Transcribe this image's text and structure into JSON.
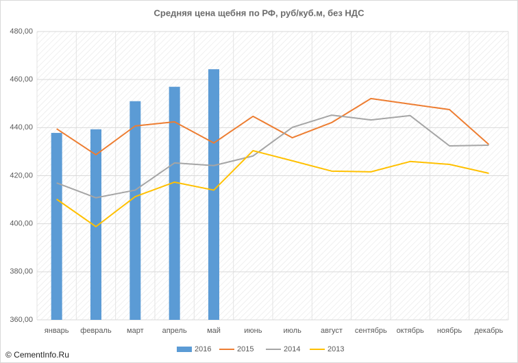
{
  "chart_data": {
    "type": "combo",
    "title": "Средняя цена щебня по РФ, руб/куб.м, без НДС",
    "watermark": "© CementInfo.Ru",
    "categories": [
      "январь",
      "февраль",
      "март",
      "апрель",
      "май",
      "июнь",
      "июль",
      "август",
      "сентябрь",
      "октябрь",
      "ноябрь",
      "декабрь"
    ],
    "ylim": [
      360,
      480
    ],
    "yticks": [
      {
        "value": 360,
        "label": "360,00"
      },
      {
        "value": 380,
        "label": "380,00"
      },
      {
        "value": 400,
        "label": "400,00"
      },
      {
        "value": 420,
        "label": "420,00"
      },
      {
        "value": 440,
        "label": "440,00"
      },
      {
        "value": 460,
        "label": "460,00"
      },
      {
        "value": 480,
        "label": "480,00"
      }
    ],
    "grid": true,
    "legend": "bottom",
    "series": [
      {
        "name": "2016",
        "type": "bar",
        "color": "#5b9bd5",
        "values": [
          437.8,
          439.3,
          451,
          457,
          464.3,
          null,
          null,
          null,
          null,
          null,
          null,
          null
        ]
      },
      {
        "name": "2015",
        "type": "line",
        "color": "#ed7d31",
        "values": [
          439.5,
          428.7,
          440.7,
          442.4,
          433.6,
          444.7,
          435.8,
          442.1,
          452.1,
          449.8,
          447.5,
          433
        ]
      },
      {
        "name": "2014",
        "type": "line",
        "color": "#a5a5a5",
        "values": [
          417,
          410.8,
          414,
          425.3,
          424.2,
          428.2,
          440.1,
          445.2,
          443.2,
          445,
          432.4,
          432.7
        ]
      },
      {
        "name": "2013",
        "type": "line",
        "color": "#ffc000",
        "values": [
          410.2,
          398.8,
          411.3,
          417.3,
          414,
          430.4,
          426.2,
          421.9,
          421.6,
          425.9,
          424.7,
          421
        ]
      }
    ]
  }
}
